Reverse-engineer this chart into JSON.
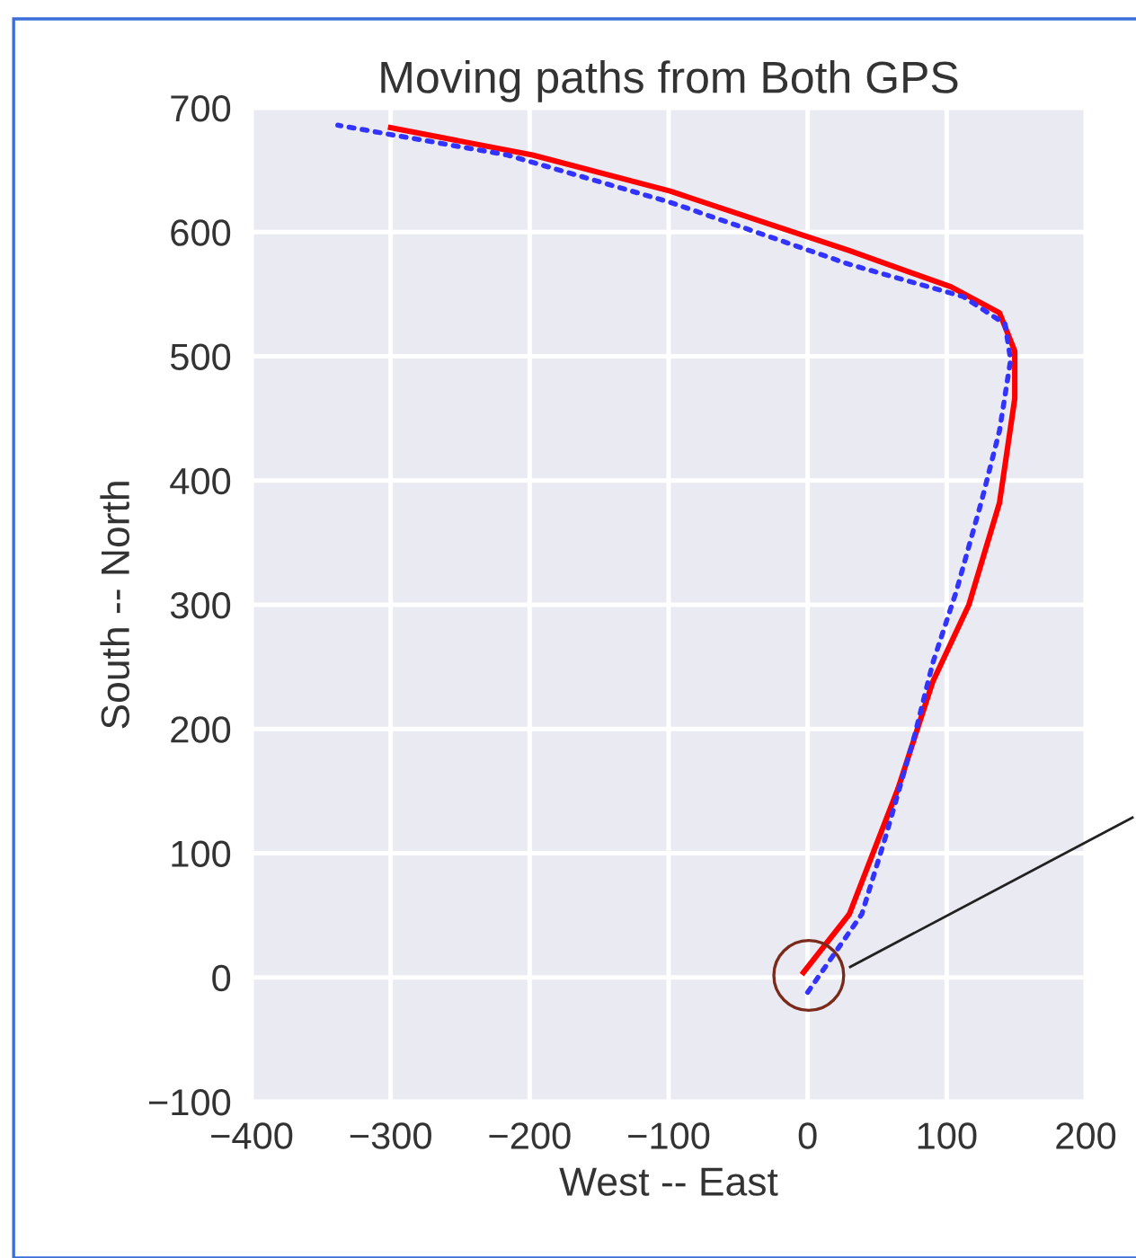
{
  "chart_data": {
    "type": "line",
    "title": "Moving paths from Both GPS",
    "xlabel": "West -- East",
    "ylabel": "South -- North",
    "xlim": [
      -400,
      200
    ],
    "ylim": [
      -100,
      700
    ],
    "xticks": [
      {
        "value": -400,
        "label": "−400"
      },
      {
        "value": -300,
        "label": "−300"
      },
      {
        "value": -200,
        "label": "−200"
      },
      {
        "value": -100,
        "label": "−100"
      },
      0,
      100,
      200
    ],
    "yticks": [
      {
        "value": -100,
        "label": "−100"
      },
      0,
      100,
      200,
      300,
      400,
      500,
      600,
      700
    ],
    "grid": true,
    "legend": false,
    "series": [
      {
        "color": "#ff0000",
        "line_style": "solid",
        "x": [
          -3,
          30,
          65,
          90,
          116,
          138,
          149,
          149,
          138,
          103,
          30,
          -99,
          -198,
          -300
        ],
        "values": [
          4,
          51,
          152,
          238,
          300,
          382,
          466,
          504,
          535,
          556,
          585,
          633,
          662,
          684
        ]
      },
      {
        "color": "#3333ff",
        "line_style": "dotted",
        "x": [
          0,
          39,
          56,
          77,
          90,
          107,
          125,
          138,
          146,
          142,
          112,
          30,
          -99,
          -216,
          -338
        ],
        "values": [
          -12,
          51,
          113,
          195,
          253,
          311,
          383,
          440,
          497,
          526,
          548,
          574,
          624,
          662,
          686
        ]
      }
    ]
  }
}
